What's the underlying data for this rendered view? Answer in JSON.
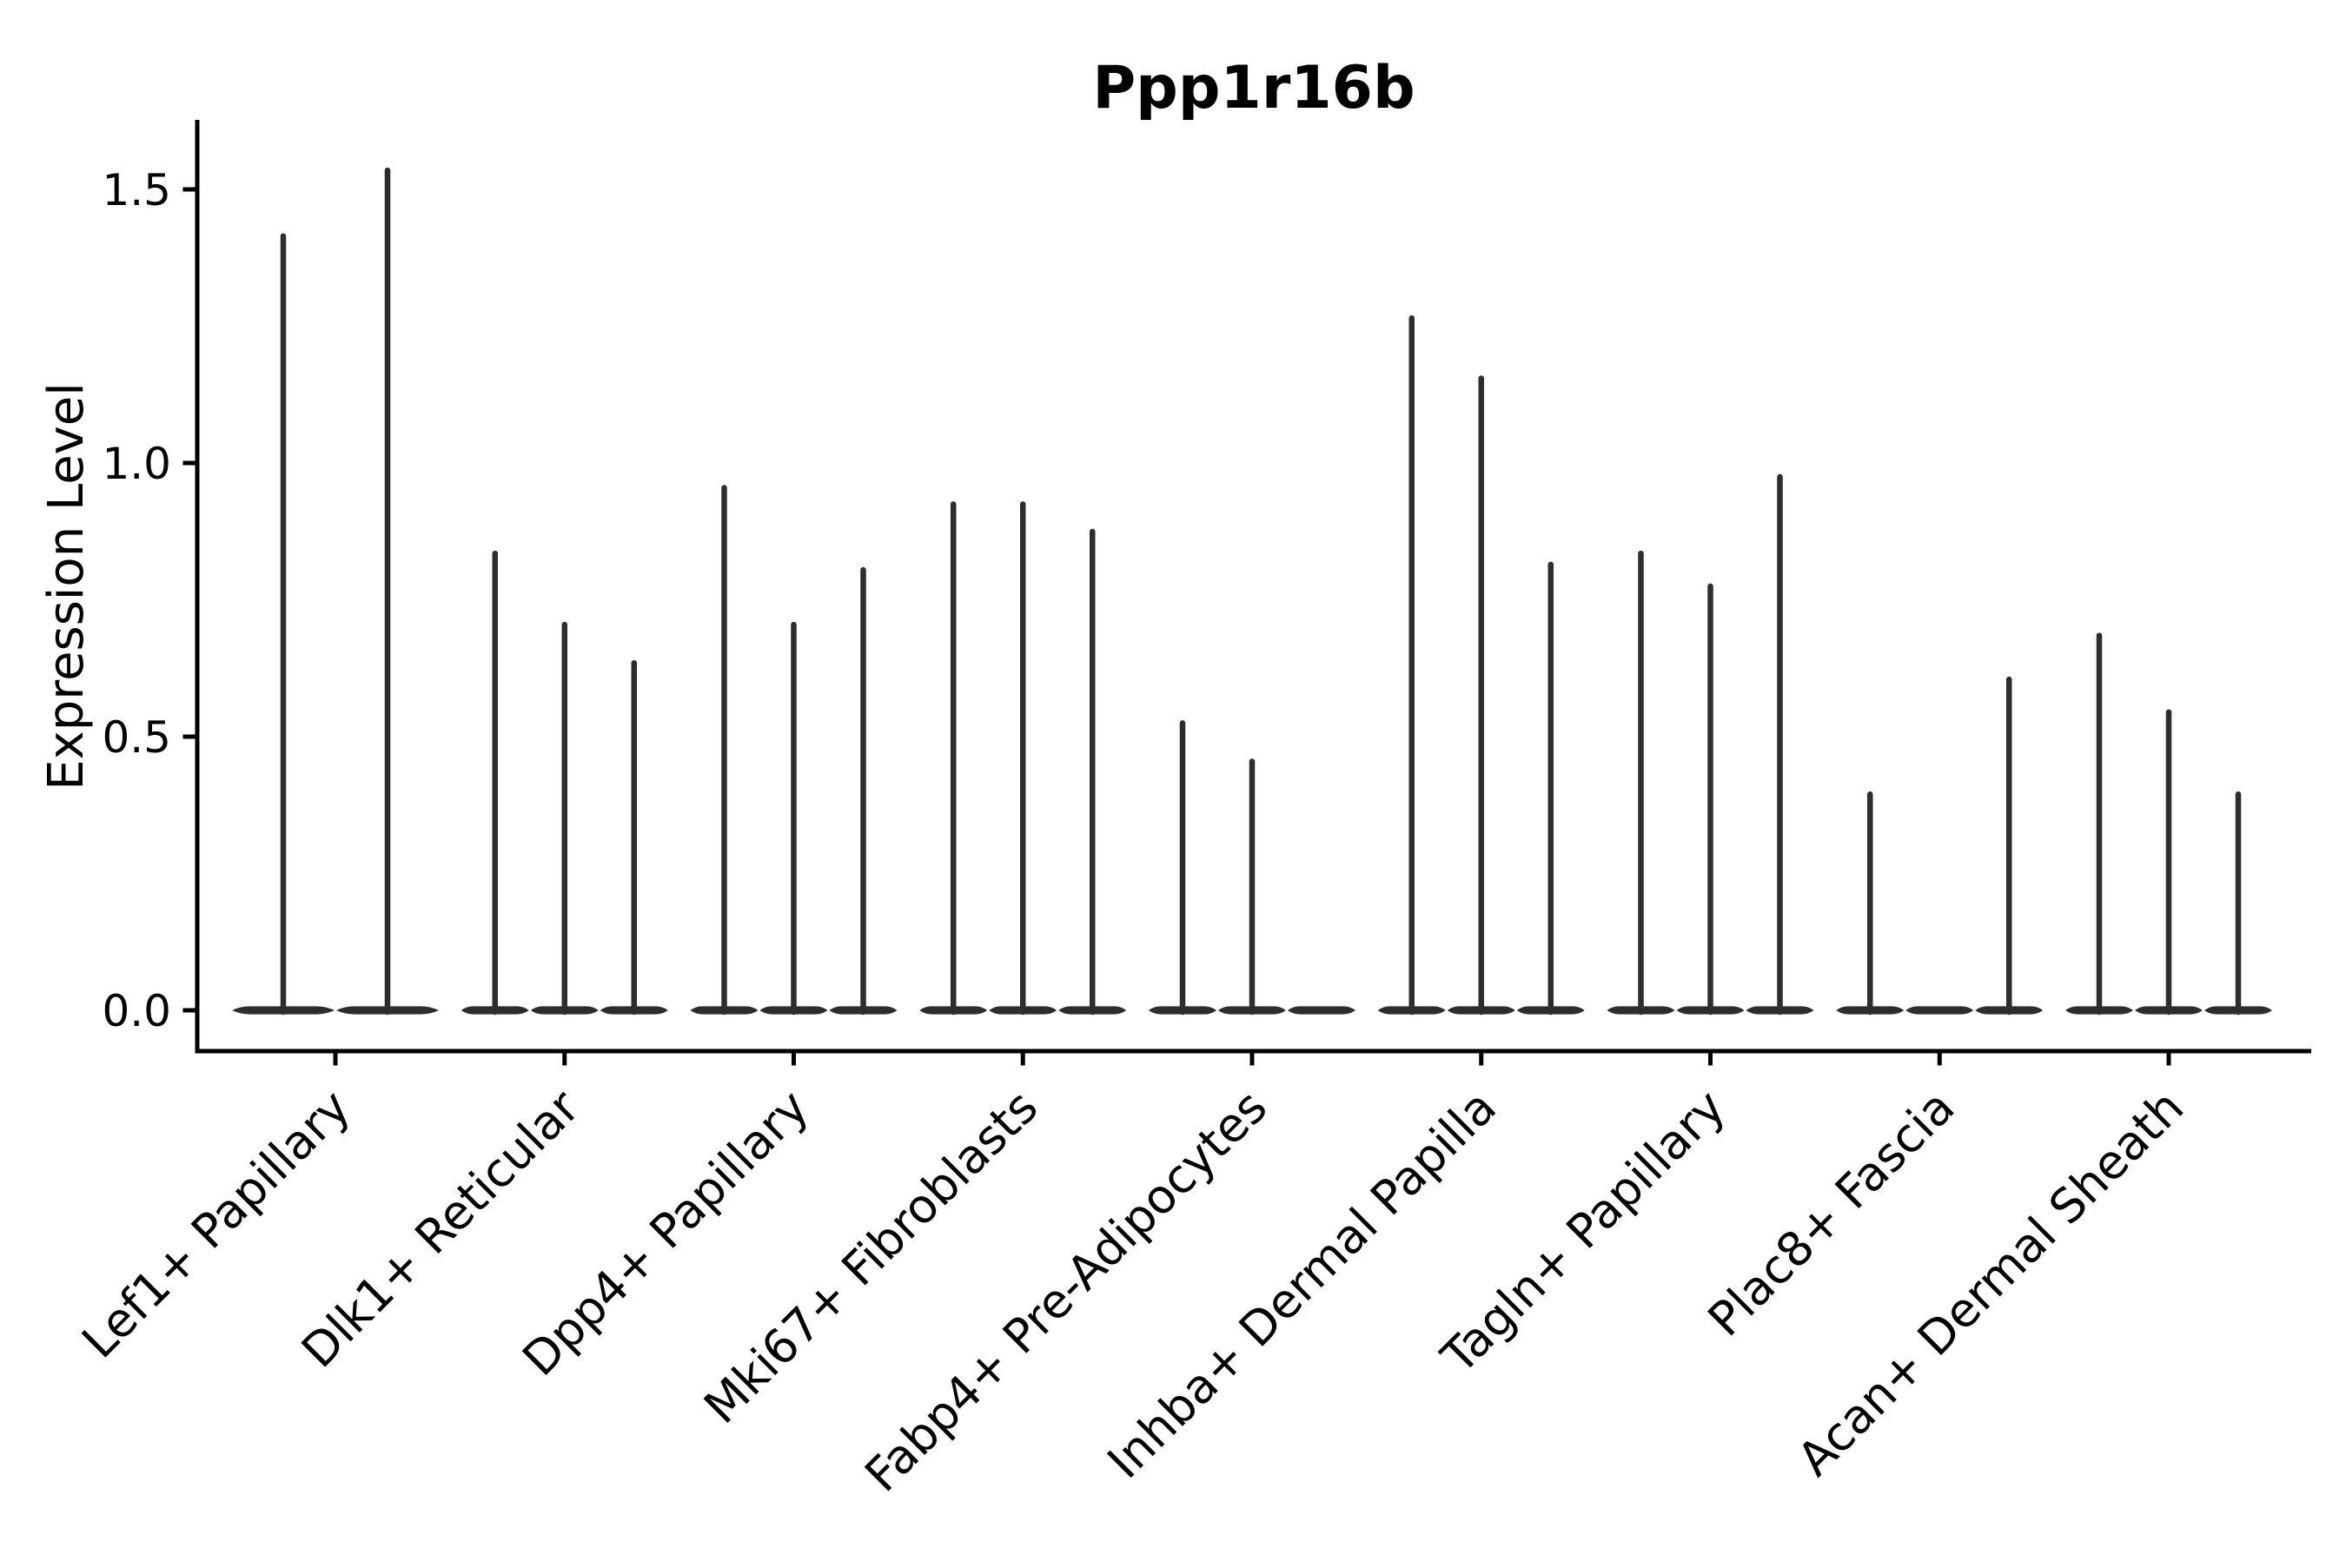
{
  "title": "Ppp1r16b",
  "y_axis": {
    "label": "Expression Level",
    "tick_labels": [
      "0.0",
      "0.5",
      "1.0",
      "1.5"
    ]
  },
  "colors": {
    "background": "#ffffff",
    "violin": "#2d2d2d",
    "axis": "#000000",
    "text": "#000000"
  },
  "chart_data": {
    "type": "violin",
    "title": "Ppp1r16b",
    "xlabel": "",
    "ylabel": "Expression Level",
    "ylim": [
      -0.07,
      1.62
    ],
    "yticks": [
      0.0,
      0.5,
      1.0,
      1.5
    ],
    "grid": false,
    "legend": false,
    "orientation": "vertical",
    "style": "needle-thin violins: dense mass at 0 expression with a thin tail reaching each violin's maximum; flat disc at baseline when all values are 0",
    "categories": [
      "Lef1+ Papillary",
      "Dlk1+ Reticular",
      "Dpp4+ Papillary",
      "Mki67+ Fibroblasts",
      "Fabp4+ Pre-Adipocytes",
      "Inhba+ Dermal Papilla",
      "Tagln+ Papillary",
      "Plac8+ Fascia",
      "Acan+ Dermal Sheath"
    ],
    "groups": [
      {
        "category": "Lef1+ Papillary",
        "violin_maxima": [
          1.42,
          1.54
        ]
      },
      {
        "category": "Dlk1+ Reticular",
        "violin_maxima": [
          0.84,
          0.71,
          0.64
        ]
      },
      {
        "category": "Dpp4+ Papillary",
        "violin_maxima": [
          0.96,
          0.71,
          0.81
        ]
      },
      {
        "category": "Mki67+ Fibroblasts",
        "violin_maxima": [
          0.93,
          0.93,
          0.88
        ]
      },
      {
        "category": "Fabp4+ Pre-Adipocytes",
        "violin_maxima": [
          0.53,
          0.46,
          0.0
        ]
      },
      {
        "category": "Inhba+ Dermal Papilla",
        "violin_maxima": [
          1.27,
          1.16,
          0.82
        ]
      },
      {
        "category": "Tagln+ Papillary",
        "violin_maxima": [
          0.84,
          0.78,
          0.98
        ]
      },
      {
        "category": "Plac8+ Fascia",
        "violin_maxima": [
          0.4,
          0.0,
          0.61
        ]
      },
      {
        "category": "Acan+ Dermal Sheath",
        "violin_maxima": [
          0.69,
          0.55,
          0.4
        ]
      }
    ]
  }
}
